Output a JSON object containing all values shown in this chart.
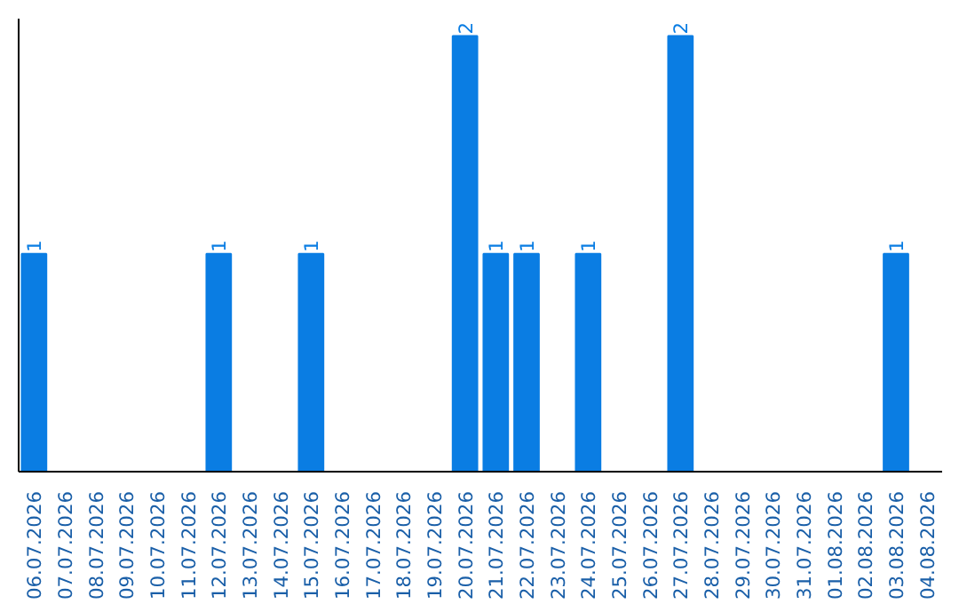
{
  "chart_data": {
    "type": "bar",
    "categories": [
      "06.07.2026",
      "07.07.2026",
      "08.07.2026",
      "09.07.2026",
      "10.07.2026",
      "11.07.2026",
      "12.07.2026",
      "13.07.2026",
      "14.07.2026",
      "15.07.2026",
      "16.07.2026",
      "17.07.2026",
      "18.07.2026",
      "19.07.2026",
      "20.07.2026",
      "21.07.2026",
      "22.07.2026",
      "23.07.2026",
      "24.07.2026",
      "25.07.2026",
      "26.07.2026",
      "27.07.2026",
      "28.07.2026",
      "29.07.2026",
      "30.07.2026",
      "31.07.2026",
      "01.08.2026",
      "02.08.2026",
      "03.08.2026",
      "04.08.2026"
    ],
    "values": [
      1,
      0,
      0,
      0,
      0,
      0,
      1,
      0,
      0,
      1,
      0,
      0,
      0,
      0,
      2,
      1,
      1,
      0,
      1,
      0,
      0,
      2,
      0,
      0,
      0,
      0,
      0,
      0,
      1,
      0
    ],
    "value_labels": [
      "1",
      null,
      null,
      null,
      null,
      null,
      "1",
      null,
      null,
      "1",
      null,
      null,
      null,
      null,
      "2",
      "1",
      "1",
      null,
      "1",
      null,
      null,
      "2",
      null,
      null,
      null,
      null,
      null,
      null,
      "1",
      null
    ],
    "color": "#0a7de3",
    "ylim": [
      0,
      2.08
    ],
    "tick_labels": "x"
  }
}
